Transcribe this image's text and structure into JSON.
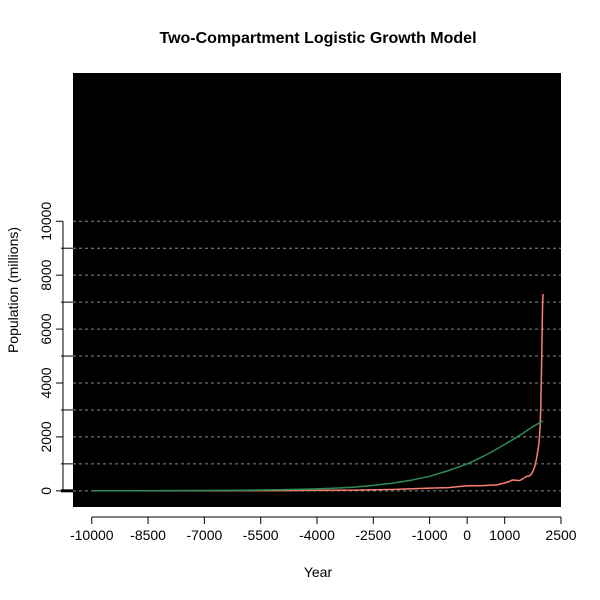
{
  "chart_data": {
    "type": "line",
    "title": "Two-Compartment Logistic Growth Model",
    "xlabel": "Year",
    "ylabel": "Population (millions)",
    "xlim": [
      -10500,
      2500
    ],
    "ylim": [
      -600,
      15500
    ],
    "x_ticks": [
      -10000,
      -8500,
      -7000,
      -5500,
      -4000,
      -2500,
      -1000,
      0,
      1000,
      2500
    ],
    "y_ticks": [
      0,
      2000,
      4000,
      6000,
      8000,
      10000
    ],
    "y_gridlines": [
      0,
      1000,
      2000,
      3000,
      4000,
      5000,
      6000,
      7000,
      8000,
      9000,
      10000
    ],
    "y_minor_ticks": [
      1000,
      3000,
      5000,
      7000,
      9000
    ],
    "grid": true,
    "plot_background": "#000000",
    "series": [
      {
        "color": "#FA8072",
        "x": [
          -10000,
          -8000,
          -6000,
          -5000,
          -4000,
          -3000,
          -2000,
          -1000,
          -500,
          0,
          200,
          400,
          600,
          800,
          1000,
          1100,
          1200,
          1300,
          1400,
          1500,
          1600,
          1650,
          1700,
          1750,
          1800,
          1850,
          1900,
          1920,
          1940,
          1960,
          1980,
          2000,
          2010,
          2020
        ],
        "values": [
          4,
          5,
          7,
          10,
          14,
          27,
          50,
          100,
          120,
          188,
          190,
          195,
          205,
          220,
          295,
          330,
          400,
          390,
          380,
          460,
          545,
          550,
          600,
          720,
          900,
          1200,
          1650,
          1860,
          2300,
          3030,
          4450,
          6100,
          6900,
          7300
        ]
      },
      {
        "color": "#2E8B57",
        "x": [
          -10000,
          -9000,
          -8000,
          -7000,
          -6000,
          -5000,
          -4000,
          -3500,
          -3000,
          -2500,
          -2000,
          -1500,
          -1000,
          -500,
          0,
          250,
          500,
          750,
          1000,
          1250,
          1500,
          1750,
          2000,
          2020
        ],
        "values": [
          2,
          4,
          7,
          12,
          20,
          40,
          70,
          100,
          140,
          200,
          280,
          390,
          540,
          750,
          1000,
          1160,
          1330,
          1520,
          1720,
          1930,
          2150,
          2380,
          2580,
          2600
        ]
      }
    ]
  }
}
